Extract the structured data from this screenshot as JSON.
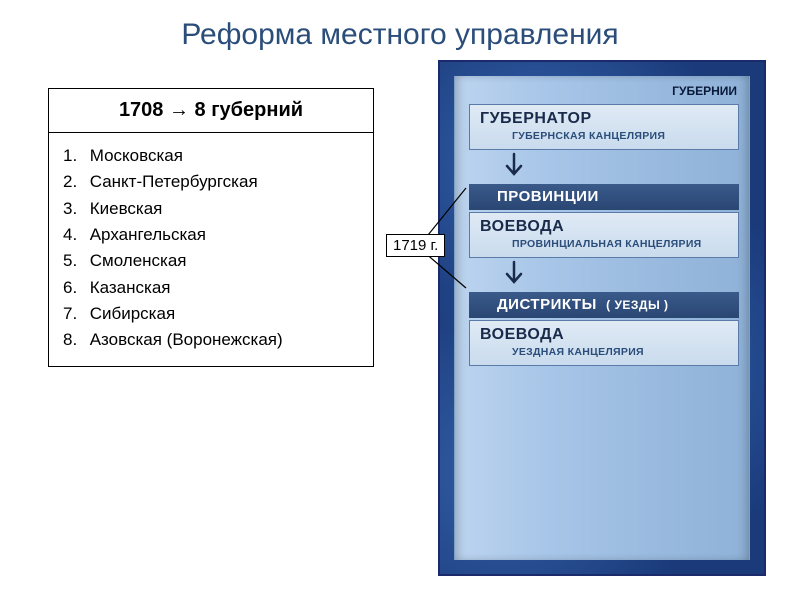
{
  "title": "Реформа местного управления",
  "leftBox": {
    "header": "1708 → 8 губерний",
    "items": [
      "Московская",
      "Санкт-Петербургская",
      "Киевская",
      "Архангельская",
      "Смоленская",
      "Казанская",
      "Сибирская",
      "Азовская (Воронежская)"
    ]
  },
  "yearTag": "1719 г.",
  "hierarchy": {
    "topLabel": "ГУБЕРНИИ",
    "level1": {
      "title": "ГУБЕРНАТОР",
      "sub": "ГУБЕРНСКАЯ КАНЦЕЛЯРИЯ"
    },
    "division1": {
      "title": "ПРОВИНЦИИ"
    },
    "level2": {
      "title": "ВОЕВОДА",
      "sub": "ПРОВИНЦИАЛЬНАЯ КАНЦЕЛЯРИЯ"
    },
    "division2": {
      "title": "ДИСТРИКТЫ",
      "paren": "( УЕЗДЫ )"
    },
    "level3": {
      "title": "ВОЕВОДА",
      "sub": "УЕЗДНАЯ КАНЦЕЛЯРИЯ"
    }
  },
  "colors": {
    "titleColor": "#2a4d7a",
    "panelBorder": "#1a2a6b",
    "panelBg": "#1a3a7a",
    "scrollBg": "#a8c6e8",
    "boxBg": "#e0eaf5",
    "barBg": "#2a4673",
    "arrowColor": "#1a2a4a"
  }
}
